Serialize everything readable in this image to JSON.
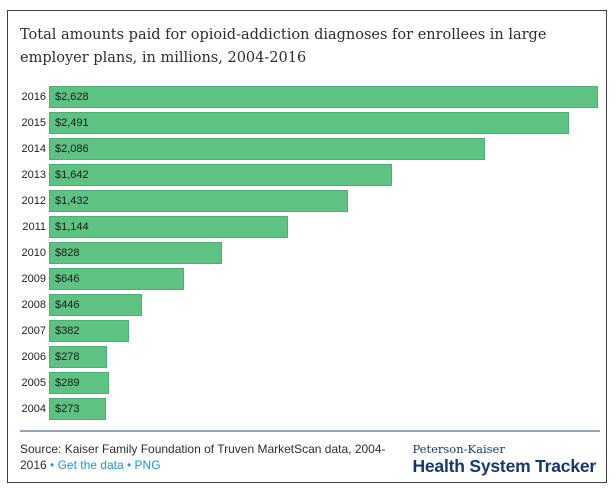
{
  "title": "Total amounts paid for opioid-addiction diagnoses for enrollees in large employer plans, in millions, 2004-2016",
  "chart_data": {
    "type": "bar",
    "orientation": "horizontal",
    "title": "Total amounts paid for opioid-addiction diagnoses for enrollees in large employer plans, in millions, 2004-2016",
    "categories": [
      "2016",
      "2015",
      "2014",
      "2013",
      "2012",
      "2011",
      "2010",
      "2009",
      "2008",
      "2007",
      "2006",
      "2005",
      "2004"
    ],
    "values": [
      2628,
      2491,
      2086,
      1642,
      1432,
      1144,
      828,
      646,
      446,
      382,
      278,
      289,
      273
    ],
    "value_labels": [
      "$2,628",
      "$2,491",
      "$2,086",
      "$1,642",
      "$1,432",
      "$1,144",
      "$828",
      "$646",
      "$446",
      "$382",
      "$278",
      "$289",
      "$273"
    ],
    "xlabel": "",
    "ylabel": "",
    "xlim": [
      0,
      2628
    ],
    "grid": false,
    "legend": false,
    "value_label_position": "inside-start"
  },
  "footer": {
    "source_text": "Source: Kaiser Family Foundation of Truven MarketScan data, 2004-2016",
    "separator": "•",
    "link_get_data": "Get the data",
    "link_png": "PNG",
    "logo_top": "Peterson-Kaiser",
    "logo_bottom": "Health System Tracker"
  },
  "colors": {
    "bar_fill": "#5ec282",
    "bar_border": "#4fae72",
    "link_blue": "#1e96d6",
    "logo_navy": "#15396b",
    "divider_blue": "#8ea6c6"
  }
}
